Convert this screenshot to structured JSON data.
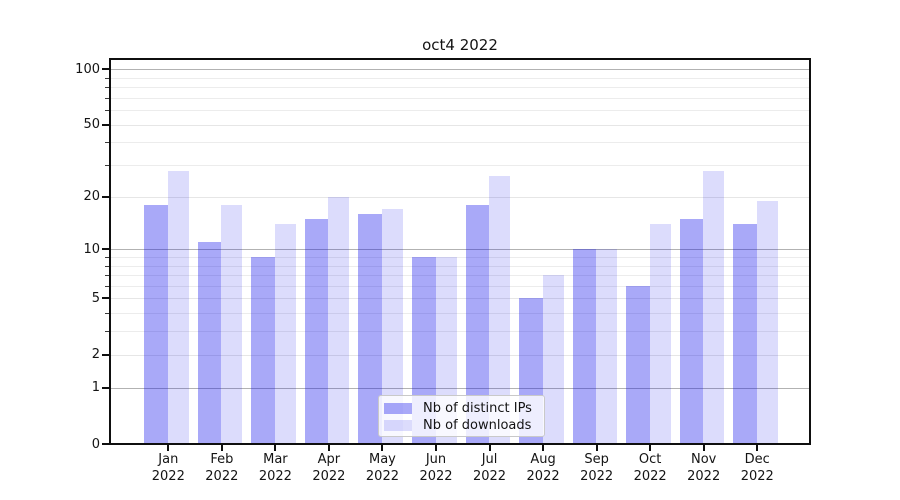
{
  "chart_data": {
    "type": "bar",
    "title": "oct4 2022",
    "categories": [
      "Jan",
      "Feb",
      "Mar",
      "Apr",
      "May",
      "Jun",
      "Jul",
      "Aug",
      "Sep",
      "Oct",
      "Nov",
      "Dec"
    ],
    "x_year_line": "2022",
    "series": [
      {
        "name": "Nb of distinct IPs",
        "color": "rgba(10,10,235,0.35)",
        "values": [
          18,
          11,
          9,
          15,
          16,
          9,
          18,
          5,
          10,
          6,
          15,
          14
        ]
      },
      {
        "name": "Nb of downloads",
        "color": "rgba(10,10,235,0.14)",
        "values": [
          28,
          18,
          14,
          20,
          17,
          9,
          26,
          7,
          10,
          14,
          28,
          19
        ]
      }
    ],
    "yscale": "log10(value+1), includes 0",
    "ylim": [
      0,
      114
    ],
    "y_tick_labels": [
      100,
      50,
      20,
      10,
      5,
      2,
      1,
      0
    ],
    "y_gridline_values": [
      1,
      2,
      5,
      10,
      20,
      50,
      100
    ],
    "y_minor_gridline_values": [
      3,
      4,
      6,
      7,
      8,
      9,
      30,
      40,
      60,
      70,
      80,
      90
    ],
    "grid": true,
    "legend_position": "lower center"
  },
  "colors": {
    "grid_decade": "#b2b2b2",
    "grid_labeled": "#e6e6e6",
    "grid_minor": "#ececec",
    "spine": "#0f0f0f",
    "background": "#ffffff"
  }
}
